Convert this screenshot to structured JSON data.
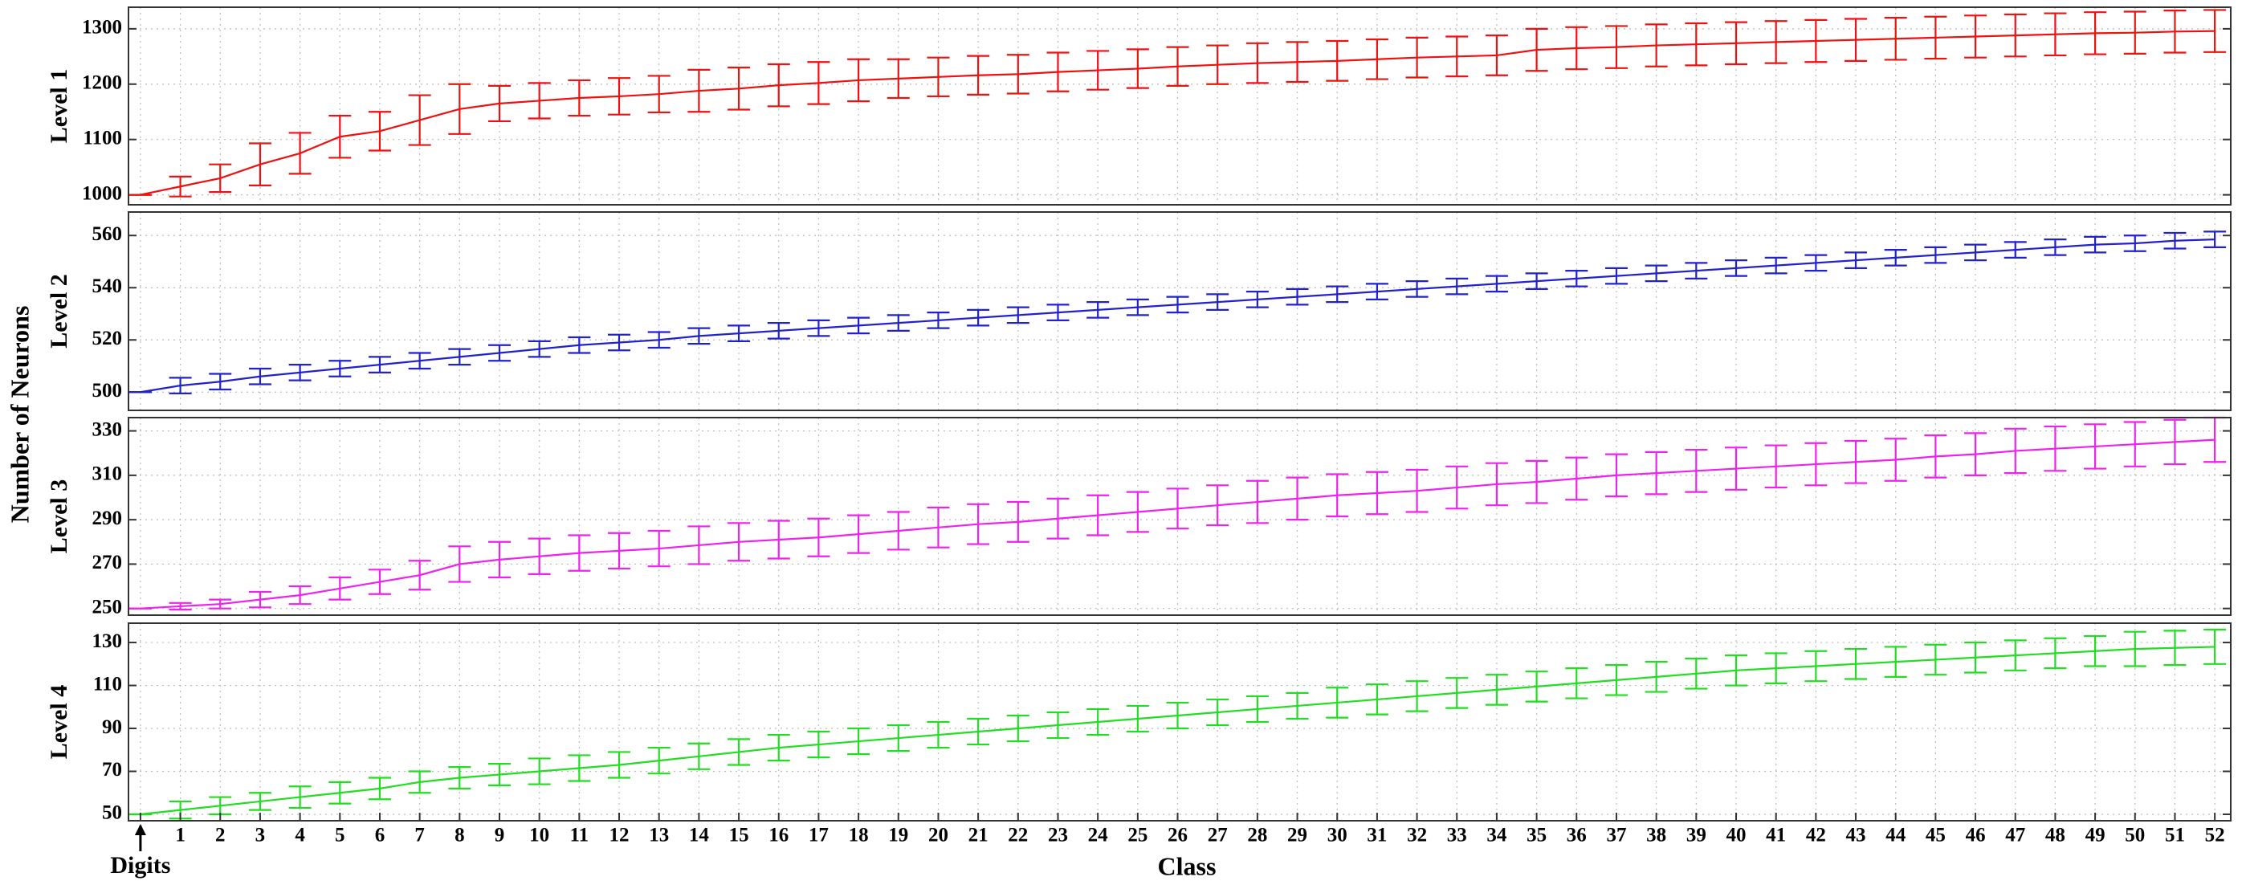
{
  "figure": {
    "ylabel": "Number of Neurons",
    "xlabel": "Class"
  },
  "chart_data": [
    {
      "type": "errorbar",
      "ylabel": "Level 1",
      "color": "#ee1111",
      "x": [
        0,
        1,
        2,
        3,
        4,
        5,
        6,
        7,
        8,
        9,
        10,
        11,
        12,
        13,
        14,
        15,
        16,
        17,
        18,
        19,
        20,
        21,
        22,
        23,
        24,
        25,
        26,
        27,
        28,
        29,
        30,
        31,
        32,
        33,
        34,
        35,
        36,
        37,
        38,
        39,
        40,
        41,
        42,
        43,
        44,
        45,
        46,
        47,
        48,
        49,
        50,
        51,
        52
      ],
      "values": [
        1000,
        1015,
        1030,
        1055,
        1075,
        1105,
        1115,
        1135,
        1155,
        1165,
        1170,
        1175,
        1178,
        1182,
        1188,
        1192,
        1198,
        1202,
        1207,
        1210,
        1213,
        1216,
        1218,
        1222,
        1225,
        1228,
        1232,
        1235,
        1238,
        1240,
        1242,
        1245,
        1248,
        1250,
        1252,
        1262,
        1265,
        1267,
        1270,
        1272,
        1274,
        1276,
        1278,
        1280,
        1282,
        1284,
        1286,
        1288,
        1290,
        1292,
        1293,
        1295,
        1296
      ],
      "errors": [
        0,
        18,
        25,
        38,
        37,
        38,
        35,
        45,
        45,
        32,
        32,
        32,
        33,
        33,
        38,
        38,
        38,
        38,
        38,
        35,
        35,
        35,
        35,
        35,
        35,
        35,
        35,
        35,
        36,
        36,
        36,
        36,
        36,
        36,
        36,
        38,
        38,
        38,
        38,
        38,
        38,
        38,
        38,
        38,
        38,
        38,
        38,
        38,
        38,
        38,
        38,
        38,
        38
      ],
      "xlim": [
        -0.3,
        52.4
      ],
      "ylim": [
        982,
        1339
      ],
      "yticks": [
        1000,
        1100,
        1200,
        1300
      ],
      "grid": true
    },
    {
      "type": "errorbar",
      "ylabel": "Level 2",
      "color": "#2222cc",
      "x": [
        0,
        1,
        2,
        3,
        4,
        5,
        6,
        7,
        8,
        9,
        10,
        11,
        12,
        13,
        14,
        15,
        16,
        17,
        18,
        19,
        20,
        21,
        22,
        23,
        24,
        25,
        26,
        27,
        28,
        29,
        30,
        31,
        32,
        33,
        34,
        35,
        36,
        37,
        38,
        39,
        40,
        41,
        42,
        43,
        44,
        45,
        46,
        47,
        48,
        49,
        50,
        51,
        52
      ],
      "values": [
        500,
        502.5,
        504,
        506,
        507.5,
        509,
        510.5,
        512,
        513.5,
        515,
        516.5,
        518,
        519,
        520,
        521.5,
        522.5,
        523.5,
        524.5,
        525.5,
        526.5,
        527.5,
        528.5,
        529.5,
        530.5,
        531.5,
        532.5,
        533.5,
        534.5,
        535.5,
        536.5,
        537.5,
        538.5,
        539.5,
        540.5,
        541.5,
        542.5,
        543.5,
        544.5,
        545.5,
        546.5,
        547.5,
        548.5,
        549.5,
        550.5,
        551.5,
        552.5,
        553.5,
        554.5,
        555.5,
        556.5,
        557,
        558,
        558.5
      ],
      "errors": [
        0,
        3,
        3,
        3,
        3,
        3,
        3,
        3,
        3,
        3,
        3,
        3,
        3,
        3,
        3,
        3,
        3,
        3,
        3,
        3,
        3,
        3,
        3,
        3,
        3,
        3,
        3,
        3,
        3,
        3,
        3,
        3,
        3,
        3,
        3,
        3,
        3,
        3,
        3,
        3,
        3,
        3,
        3,
        3,
        3,
        3,
        3,
        3,
        3,
        3,
        3,
        3,
        3
      ],
      "xlim": [
        -0.3,
        52.4
      ],
      "ylim": [
        493,
        569
      ],
      "yticks": [
        500,
        520,
        540,
        560
      ],
      "grid": true
    },
    {
      "type": "errorbar",
      "ylabel": "Level 3",
      "color": "#ee22ee",
      "x": [
        0,
        1,
        2,
        3,
        4,
        5,
        6,
        7,
        8,
        9,
        10,
        11,
        12,
        13,
        14,
        15,
        16,
        17,
        18,
        19,
        20,
        21,
        22,
        23,
        24,
        25,
        26,
        27,
        28,
        29,
        30,
        31,
        32,
        33,
        34,
        35,
        36,
        37,
        38,
        39,
        40,
        41,
        42,
        43,
        44,
        45,
        46,
        47,
        48,
        49,
        50,
        51,
        52
      ],
      "values": [
        250,
        251,
        252,
        254,
        256,
        259,
        262,
        265,
        270,
        272,
        273.5,
        275,
        276,
        277,
        278.5,
        280,
        281,
        282,
        283.5,
        285,
        286.5,
        288,
        289,
        290.5,
        292,
        293.5,
        295,
        296.5,
        298,
        299.5,
        301,
        302,
        303,
        304.5,
        306,
        307,
        308.5,
        310,
        311,
        312,
        313,
        314,
        315,
        316,
        317,
        318.5,
        319.5,
        321,
        322,
        323,
        324,
        325,
        326
      ],
      "errors": [
        0,
        1.5,
        2,
        3.5,
        4,
        5,
        5.5,
        6.5,
        8,
        8,
        8,
        8,
        8,
        8,
        8.5,
        8.5,
        8.5,
        8.5,
        8.5,
        8.5,
        9,
        9,
        9,
        9,
        9,
        9,
        9,
        9,
        9.5,
        9.5,
        9.5,
        9.5,
        9.5,
        9.5,
        9.5,
        9.5,
        9.5,
        9.5,
        9.5,
        9.5,
        9.5,
        9.5,
        9.5,
        9.5,
        9.5,
        9.5,
        9.5,
        10,
        10,
        10,
        10,
        10,
        10
      ],
      "xlim": [
        -0.3,
        52.4
      ],
      "ylim": [
        247,
        336
      ],
      "yticks": [
        250,
        270,
        290,
        310,
        330
      ],
      "grid": true
    },
    {
      "type": "errorbar",
      "ylabel": "Level 4",
      "color": "#22dd22",
      "x": [
        0,
        1,
        2,
        3,
        4,
        5,
        6,
        7,
        8,
        9,
        10,
        11,
        12,
        13,
        14,
        15,
        16,
        17,
        18,
        19,
        20,
        21,
        22,
        23,
        24,
        25,
        26,
        27,
        28,
        29,
        30,
        31,
        32,
        33,
        34,
        35,
        36,
        37,
        38,
        39,
        40,
        41,
        42,
        43,
        44,
        45,
        46,
        47,
        48,
        49,
        50,
        51,
        52
      ],
      "values": [
        50,
        52,
        54,
        56,
        58,
        60,
        62,
        65,
        67,
        68.5,
        70,
        71.5,
        73,
        75,
        77,
        79,
        81,
        82.5,
        84,
        85.5,
        87,
        88.5,
        90,
        91.5,
        93,
        94.5,
        96,
        97.5,
        99,
        100.5,
        102,
        103.5,
        105,
        106.5,
        108,
        109.5,
        111,
        112.5,
        114,
        115.5,
        117,
        118,
        119,
        120,
        121,
        122,
        123,
        124,
        125,
        126,
        127,
        127.5,
        128
      ],
      "errors": [
        0,
        4,
        4,
        4,
        5,
        5,
        5,
        5,
        5,
        5,
        6,
        6,
        6,
        6,
        6,
        6,
        6,
        6,
        6,
        6,
        6,
        6,
        6,
        6,
        6,
        6,
        6,
        6,
        6,
        6,
        7,
        7,
        7,
        7,
        7,
        7,
        7,
        7,
        7,
        7,
        7,
        7,
        7,
        7,
        7,
        7,
        7,
        7,
        7,
        7,
        8,
        8,
        8
      ],
      "xlim": [
        -0.3,
        52.4
      ],
      "ylim": [
        47,
        139
      ],
      "yticks": [
        50,
        70,
        90,
        110,
        130
      ],
      "grid": true,
      "xticks": [
        {
          "value": 0,
          "label": "Digits"
        },
        1,
        2,
        3,
        4,
        5,
        6,
        7,
        8,
        9,
        10,
        11,
        12,
        13,
        14,
        15,
        16,
        17,
        18,
        19,
        20,
        21,
        22,
        23,
        24,
        25,
        26,
        27,
        28,
        29,
        30,
        31,
        32,
        33,
        34,
        35,
        36,
        37,
        38,
        39,
        40,
        41,
        42,
        43,
        44,
        45,
        46,
        47,
        48,
        49,
        50,
        51,
        52
      ]
    }
  ]
}
